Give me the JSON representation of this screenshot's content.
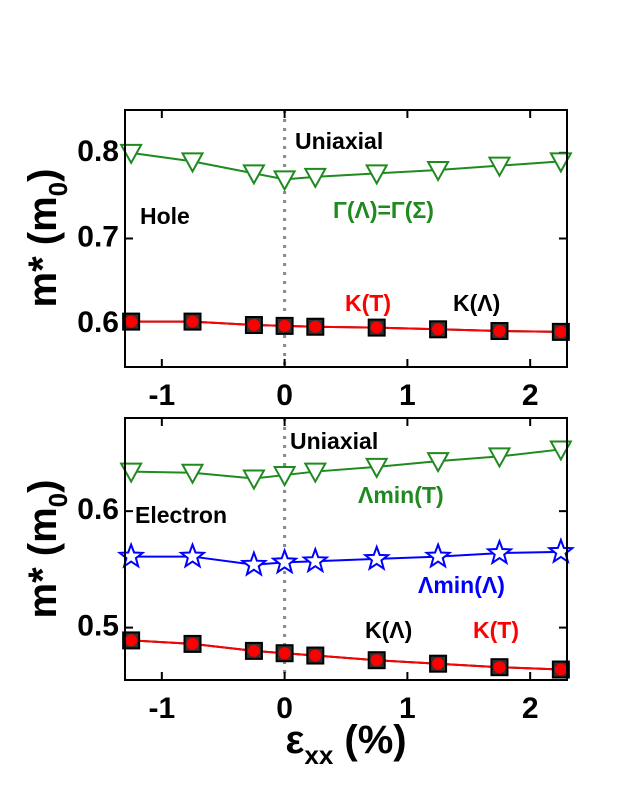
{
  "chart_data": [
    {
      "type": "line",
      "ylabel": [
        "m* (m",
        "0",
        ")"
      ],
      "annotations": [
        "Uniaxial",
        "Hole"
      ],
      "reference_line_x": 0,
      "xlim": [
        -1.3,
        2.3
      ],
      "xticks": [
        -1,
        0,
        1,
        2
      ],
      "ylim": [
        0.55,
        0.85
      ],
      "yticks": [
        0.6,
        0.7,
        0.8
      ],
      "x": [
        -1.25,
        -0.75,
        -0.25,
        0,
        0.25,
        0.75,
        1.25,
        1.75,
        2.25
      ],
      "series": [
        {
          "name": "Γ(Λ)=Γ(Σ)",
          "color": "#1f8a1f",
          "marker": "triangle-down",
          "values": [
            0.8,
            0.79,
            0.776,
            0.769,
            0.772,
            0.776,
            0.78,
            0.785,
            0.79
          ]
        },
        {
          "name": "K(Λ)",
          "color": "#000000",
          "marker": "square",
          "values": [
            0.603,
            0.603,
            0.599,
            0.598,
            0.597,
            0.596,
            0.594,
            0.592,
            0.591
          ]
        },
        {
          "name": "K(T)",
          "color": "#ff0000",
          "marker": "circle",
          "values": [
            0.603,
            0.603,
            0.599,
            0.598,
            0.597,
            0.596,
            0.594,
            0.592,
            0.591
          ]
        }
      ]
    },
    {
      "type": "line",
      "ylabel": [
        "m* (m",
        "0",
        ")"
      ],
      "xlabel": [
        "ε",
        "xx",
        " (%)"
      ],
      "annotations": [
        "Uniaxial",
        "Electron"
      ],
      "reference_line_x": 0,
      "xlim": [
        -1.3,
        2.3
      ],
      "xticks": [
        -1,
        0,
        1,
        2
      ],
      "ylim": [
        0.455,
        0.68
      ],
      "yticks": [
        0.5,
        0.6
      ],
      "x": [
        -1.25,
        -0.75,
        -0.25,
        0,
        0.25,
        0.75,
        1.25,
        1.75,
        2.25
      ],
      "series": [
        {
          "name": "Λmin(T)",
          "color": "#1f8a1f",
          "marker": "triangle-down",
          "values": [
            0.634,
            0.633,
            0.628,
            0.631,
            0.634,
            0.638,
            0.643,
            0.647,
            0.653
          ]
        },
        {
          "name": "Λmin(Λ)",
          "color": "#0000ff",
          "marker": "star",
          "values": [
            0.561,
            0.561,
            0.554,
            0.556,
            0.557,
            0.559,
            0.561,
            0.564,
            0.565
          ]
        },
        {
          "name": "K(Λ)",
          "color": "#000000",
          "marker": "square",
          "values": [
            0.489,
            0.486,
            0.48,
            0.478,
            0.476,
            0.472,
            0.469,
            0.466,
            0.464
          ]
        },
        {
          "name": "K(T)",
          "color": "#ff0000",
          "marker": "circle",
          "values": [
            0.489,
            0.486,
            0.48,
            0.478,
            0.476,
            0.472,
            0.469,
            0.466,
            0.464
          ]
        }
      ]
    }
  ]
}
